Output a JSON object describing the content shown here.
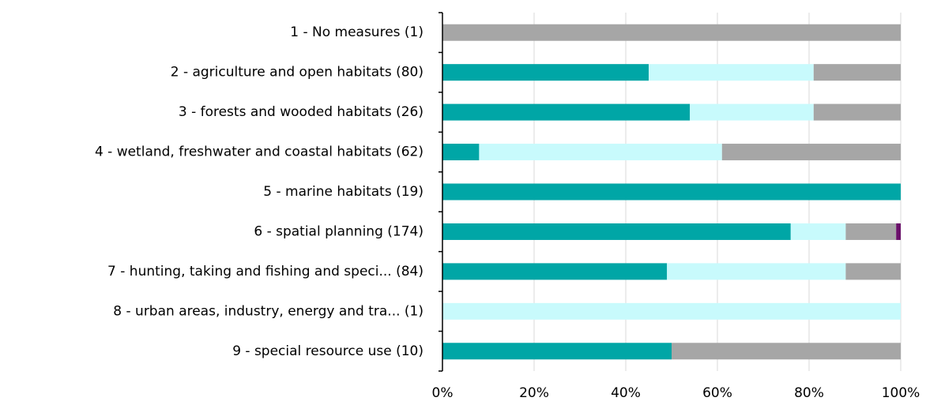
{
  "chart_data": {
    "type": "stacked_barh",
    "categories": [
      "1 - No measures (1)",
      "2 - agriculture and open habitats (80)",
      "3 - forests and wooded habitats (26)",
      "4 - wetland, freshwater and coastal habitats (62)",
      "5 - marine habitats (19)",
      "6 - spatial planning (174)",
      "7 - hunting, taking and fishing and speci... (84)",
      "8 - urban areas, industry, energy and tra... (1)",
      "9 - special resource use (10)"
    ],
    "series": [
      {
        "color": "#00a6a6",
        "values": [
          0,
          45,
          54,
          8,
          100,
          76,
          49,
          0,
          50
        ]
      },
      {
        "color": "#c8fafc",
        "values": [
          0,
          36,
          27,
          53,
          0,
          12,
          39,
          100,
          0
        ]
      },
      {
        "color": "#a6a6a6",
        "values": [
          100,
          19,
          19,
          39,
          0,
          11,
          12,
          0,
          50
        ]
      },
      {
        "color": "#6a0f6a",
        "values": [
          0,
          0,
          0,
          0,
          0,
          1,
          0,
          0,
          0
        ]
      }
    ],
    "xlim": [
      0,
      100
    ],
    "xticks": [
      {
        "value": 0,
        "label": "0%"
      },
      {
        "value": 20,
        "label": "20%"
      },
      {
        "value": 40,
        "label": "40%"
      },
      {
        "value": 60,
        "label": "60%"
      },
      {
        "value": 80,
        "label": "80%"
      },
      {
        "value": 100,
        "label": "100%"
      }
    ],
    "grid": true
  }
}
